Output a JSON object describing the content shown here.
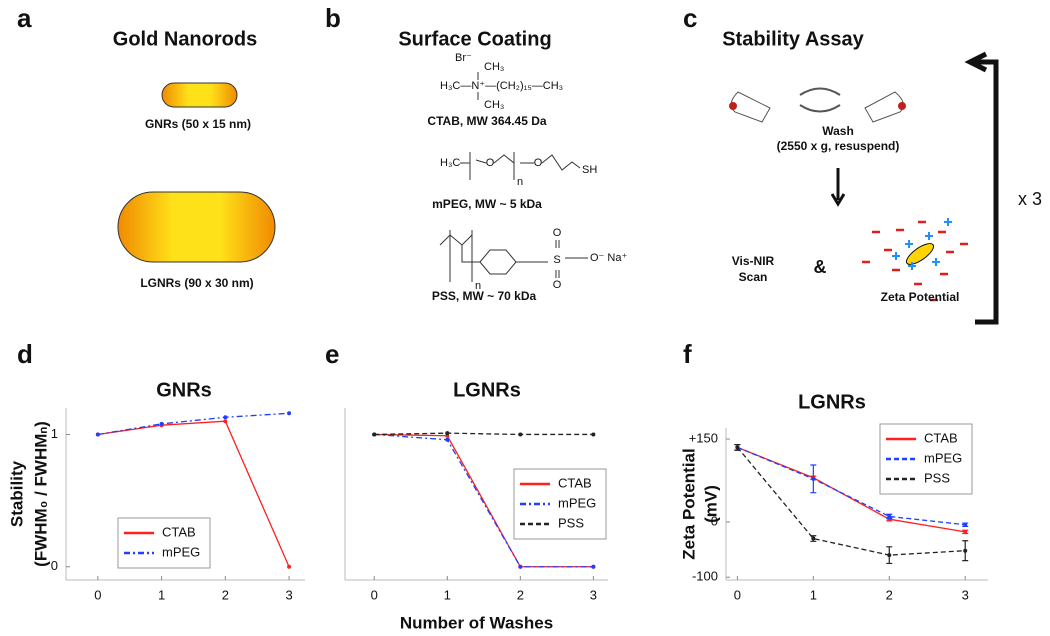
{
  "panels": [
    {
      "label": "a",
      "title": "Gold Nanorods",
      "captions": [
        "GNRs (50 x 15 nm)",
        "LGNRs (90 x 30 nm)"
      ]
    },
    {
      "label": "b",
      "title": "Surface Coating",
      "structures": [
        {
          "texts": [
            "Br⁻",
            "CH₃",
            "H₃C—N⁺—(CH₂)₁₅—CH₃",
            "CH₃"
          ],
          "caption": "CTAB, MW 364.45 Da"
        },
        {
          "texts": [
            "H₃C",
            "O",
            "O",
            "SH",
            "n"
          ],
          "caption": "mPEG, MW ~ 5 kDa"
        },
        {
          "texts": [
            "S",
            "O",
            "O",
            "O⁻ Na⁺",
            "n"
          ],
          "caption": "PSS, MW ~ 70 kDa"
        }
      ]
    },
    {
      "label": "c",
      "title": "Stability Assay",
      "wash": "Wash",
      "wash_detail": "(2550 x g, resuspend)",
      "scan": [
        "Vis-NIR",
        "Scan"
      ],
      "and": "&",
      "zeta": "Zeta Potential",
      "repeat": "x 3"
    }
  ],
  "chart_data": [
    {
      "panel": "d",
      "type": "line",
      "title": "GNRs",
      "ylabel": [
        "Stability",
        "(FWHM₀ / FWHMₙ)"
      ],
      "x": [
        0,
        1,
        2,
        3
      ],
      "xlim": [
        -0.5,
        3.25
      ],
      "xticks": [
        0,
        1,
        2,
        3
      ],
      "ylim": [
        -0.1,
        1.2
      ],
      "yticks": [
        0,
        1
      ],
      "legend": "lower left",
      "series": [
        {
          "name": "CTAB",
          "color": "#ff2020",
          "dash": "solid",
          "values": [
            1,
            1.07,
            1.1,
            0
          ]
        },
        {
          "name": "mPEG",
          "color": "#2040ff",
          "dash": "dashdot",
          "values": [
            1,
            1.08,
            1.13,
            1.16
          ]
        }
      ]
    },
    {
      "panel": "e",
      "type": "line",
      "title": "LGNRs",
      "xlabel": "Number of Washes",
      "x": [
        0,
        1,
        2,
        3
      ],
      "xlim": [
        -0.4,
        3.2
      ],
      "xticks": [
        0,
        1,
        2,
        3
      ],
      "ylim": [
        -0.1,
        1.2
      ],
      "legend": "center right",
      "series": [
        {
          "name": "CTAB",
          "color": "#ff2020",
          "dash": "solid",
          "values": [
            1,
            0.99,
            0,
            0
          ]
        },
        {
          "name": "mPEG",
          "color": "#2040ff",
          "dash": "dashdot",
          "values": [
            1,
            0.96,
            0,
            0
          ]
        },
        {
          "name": "PSS",
          "color": "#222222",
          "dash": "dashed",
          "values": [
            1,
            1.01,
            1,
            1
          ]
        }
      ]
    },
    {
      "panel": "f",
      "type": "line",
      "title": "LGNRs",
      "ylabel": [
        "Zeta Potential",
        "(mV)"
      ],
      "x": [
        0,
        1,
        2,
        3
      ],
      "xlim": [
        -0.15,
        3.3
      ],
      "xticks": [
        0,
        1,
        2,
        3
      ],
      "ylim": [
        -105,
        170
      ],
      "yticks": [
        {
          "value": 150,
          "label": "+150"
        },
        0,
        -100
      ],
      "legend": "upper right",
      "series": [
        {
          "name": "CTAB",
          "color": "#ff2020",
          "dash": "solid",
          "values": [
            135,
            80,
            5,
            -18
          ],
          "errors": [
            5,
            3,
            3,
            3
          ]
        },
        {
          "name": "mPEG",
          "color": "#2040ff",
          "dash": "dashed",
          "values": [
            135,
            78,
            10,
            -5
          ],
          "errors": [
            5,
            25,
            4,
            3
          ]
        },
        {
          "name": "PSS",
          "color": "#222222",
          "dash": "dashed",
          "values": [
            135,
            -30,
            -60,
            -52
          ],
          "errors": [
            5,
            5,
            15,
            18
          ]
        }
      ]
    }
  ]
}
